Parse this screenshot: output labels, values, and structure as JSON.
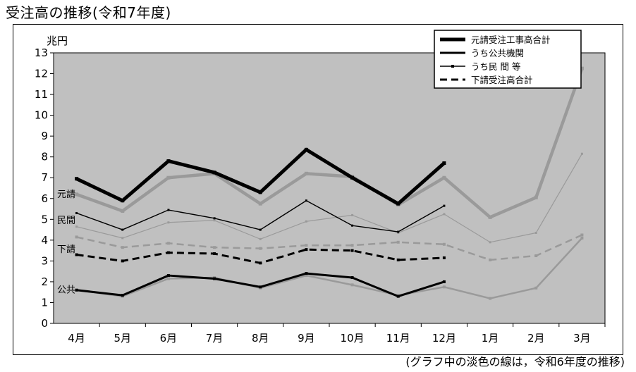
{
  "title": "受注高の推移(令和7年度)",
  "footnote": "(グラフ中の淡色の線は，令和6年度の推移)",
  "chart_data": {
    "type": "line",
    "title": "受注高の推移(令和7年度)",
    "unit_label": "兆円",
    "categories": [
      "4月",
      "5月",
      "6月",
      "7月",
      "8月",
      "9月",
      "10月",
      "11月",
      "12月",
      "1月",
      "2月",
      "3月"
    ],
    "ylim": [
      0,
      13
    ],
    "yticks": [
      "0",
      "1",
      "2",
      "3",
      "4",
      "5",
      "6",
      "7",
      "8",
      "9",
      "10",
      "11",
      "12",
      "13"
    ],
    "grid": false,
    "plot_background": "#c0c0c0",
    "legend_position": "top-right",
    "series": [
      {
        "name": "元請受注工事高合計",
        "period": "current",
        "color": "#000000",
        "style": "solid",
        "width": "thick",
        "values": [
          6.95,
          5.9,
          7.8,
          7.25,
          6.3,
          8.35,
          7.0,
          5.75,
          7.7,
          null,
          null,
          null
        ]
      },
      {
        "name": "うち公共機関",
        "period": "current",
        "color": "#000000",
        "style": "solid",
        "width": "medium",
        "values": [
          1.6,
          1.35,
          2.3,
          2.15,
          1.75,
          2.4,
          2.2,
          1.3,
          2.0,
          null,
          null,
          null
        ]
      },
      {
        "name": "うち民 間 等",
        "period": "current",
        "color": "#000000",
        "style": "solid-marker",
        "width": "thin",
        "values": [
          5.3,
          4.5,
          5.45,
          5.05,
          4.5,
          5.9,
          4.7,
          4.4,
          5.65,
          null,
          null,
          null
        ]
      },
      {
        "name": "下請受注高合計",
        "period": "current",
        "color": "#000000",
        "style": "dashed",
        "width": "medium",
        "values": [
          3.3,
          3.0,
          3.4,
          3.35,
          2.9,
          3.55,
          3.5,
          3.05,
          3.15,
          null,
          null,
          null
        ]
      },
      {
        "period": "previous",
        "color": "#9a9a9a",
        "style": "solid",
        "width": "thick",
        "values": [
          6.2,
          5.4,
          7.0,
          7.2,
          5.75,
          7.2,
          7.05,
          5.7,
          7.0,
          5.1,
          6.05,
          12.25
        ]
      },
      {
        "period": "previous",
        "color": "#9a9a9a",
        "style": "solid",
        "width": "medium",
        "values": [
          1.6,
          1.3,
          2.15,
          2.2,
          1.7,
          2.3,
          1.85,
          1.35,
          1.75,
          1.2,
          1.7,
          4.1
        ]
      },
      {
        "period": "previous",
        "color": "#9a9a9a",
        "style": "solid-marker",
        "width": "thin",
        "values": [
          4.65,
          4.1,
          4.85,
          4.95,
          4.05,
          4.9,
          5.2,
          4.35,
          5.25,
          3.9,
          4.35,
          8.15
        ]
      },
      {
        "period": "previous",
        "color": "#9a9a9a",
        "style": "dashed",
        "width": "medium",
        "values": [
          4.15,
          3.65,
          3.85,
          3.65,
          3.6,
          3.75,
          3.75,
          3.9,
          3.8,
          3.05,
          3.25,
          4.25
        ]
      }
    ],
    "side_labels": [
      {
        "text": "元請",
        "value": 6.2
      },
      {
        "text": "民間",
        "value": 4.95
      },
      {
        "text": "下請",
        "value": 3.55
      },
      {
        "text": "公共",
        "value": 1.6
      }
    ]
  }
}
